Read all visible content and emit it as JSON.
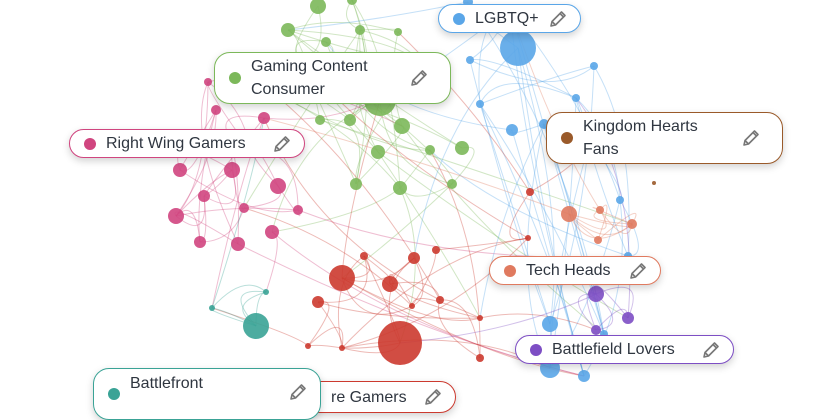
{
  "labels": [
    {
      "text": "LGBTQ+",
      "color": "#5aa6e8"
    },
    {
      "text": "Gaming Content Consumer",
      "color": "#7cb85a"
    },
    {
      "text": "Right Wing Gamers",
      "color": "#d0457f"
    },
    {
      "text": "Kingdom Hearts Fans",
      "color": "#9a5a2a"
    },
    {
      "text": "Tech Heads",
      "color": "#e07a5f"
    },
    {
      "text": "Battlefield Lovers",
      "color": "#7d4ec4"
    },
    {
      "text": "Battlefront",
      "color": "#3aa396"
    },
    {
      "text": "re Gamers",
      "color": "#cc3a2f"
    }
  ]
}
